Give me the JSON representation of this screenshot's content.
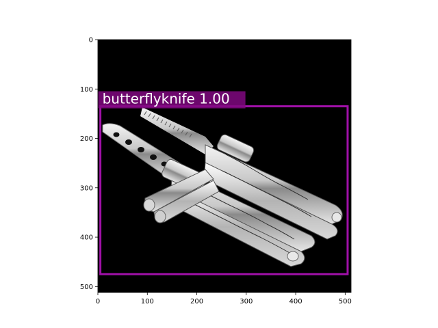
{
  "image": {
    "subject": "Two chrome butterfly knives with engraved handles on a black background, one with a comb blade and one with a perforated trainer blade",
    "background_color": "#000000"
  },
  "detection": {
    "label_text": "butterflyknife 1.00",
    "box_color": "#a010a8",
    "label_bg_color": "#800880",
    "box_xyxy": [
      5,
      135,
      505,
      475
    ]
  },
  "axes": {
    "xlim": [
      0,
      512
    ],
    "ylim": [
      512,
      0
    ],
    "x_ticks": [
      "0",
      "100",
      "200",
      "300",
      "400",
      "500"
    ],
    "y_ticks": [
      "0",
      "100",
      "200",
      "300",
      "400",
      "500"
    ]
  }
}
